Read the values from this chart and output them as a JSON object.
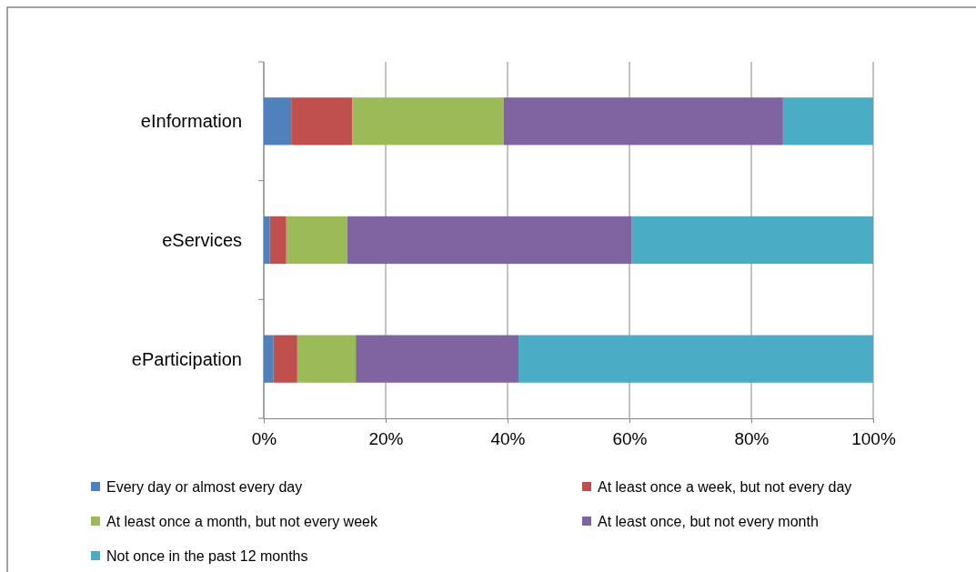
{
  "chart_data": {
    "type": "bar",
    "orientation": "horizontal",
    "stacked": true,
    "categories": [
      "eInformation",
      "eServices",
      "eParticipation"
    ],
    "series": [
      {
        "name": "Every day or almost every day",
        "color": "#4f81bd",
        "values": [
          4.5,
          1,
          1.6
        ]
      },
      {
        "name": "At least once a week, but not every day",
        "color": "#c0504d",
        "values": [
          10,
          2.7,
          3.9
        ]
      },
      {
        "name": "At least once a month, but not every week",
        "color": "#9bbb59",
        "values": [
          24.9,
          10,
          9.6
        ]
      },
      {
        "name": "At least once, but not every month",
        "color": "#8064a2",
        "values": [
          45.8,
          46.7,
          26.7
        ]
      },
      {
        "name": "Not once in the past 12 months",
        "color": "#4bacc6",
        "values": [
          14.8,
          39.6,
          58.2
        ]
      }
    ],
    "xlim": [
      0,
      100
    ],
    "xticks": [
      {
        "value": 0,
        "label": "0%"
      },
      {
        "value": 20,
        "label": "20%"
      },
      {
        "value": 40,
        "label": "40%"
      },
      {
        "value": 60,
        "label": "60%"
      },
      {
        "value": 80,
        "label": "80%"
      },
      {
        "value": 100,
        "label": "100%"
      }
    ],
    "grid": "x",
    "legend": "bottom"
  }
}
